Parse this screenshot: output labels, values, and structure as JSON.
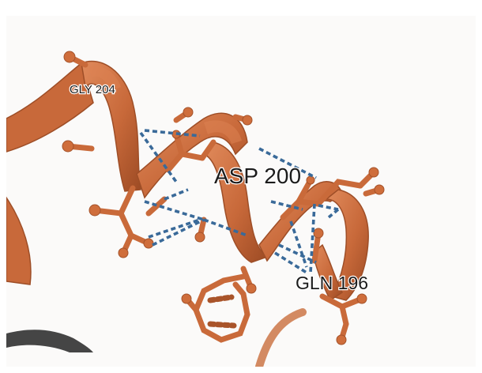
{
  "labels": {
    "gly": "GLY 204",
    "asp": "ASP 200",
    "gln": "GLN 196"
  },
  "colors": {
    "background": "#fbfaf9",
    "ribbon": "#c8693a",
    "hydrogen_bond": "#3a6a99",
    "dark_ribbon": "#444444"
  }
}
